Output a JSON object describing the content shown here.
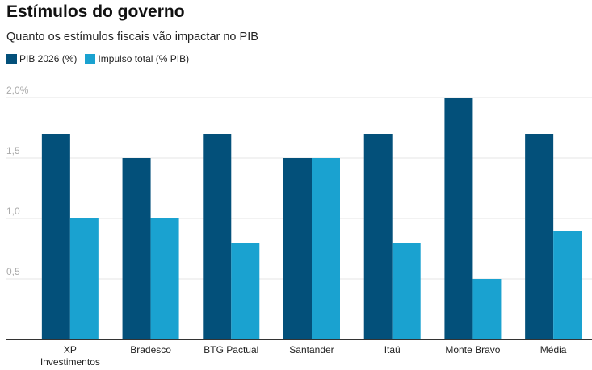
{
  "title": "Estímulos do governo",
  "subtitle": "Quanto os estímulos fiscais vão impactar no PIB",
  "chart_data": {
    "type": "bar",
    "title": "Estímulos do governo",
    "subtitle": "Quanto os estímulos fiscais vão impactar no PIB",
    "categories": [
      "XP Investimentos",
      "Bradesco",
      "BTG Pactual",
      "Santander",
      "Itaú",
      "Monte Bravo",
      "Média"
    ],
    "category_lines": [
      [
        "XP",
        "Investimentos"
      ],
      [
        "Bradesco"
      ],
      [
        "BTG Pactual"
      ],
      [
        "Santander"
      ],
      [
        "Itaú"
      ],
      [
        "Monte Bravo"
      ],
      [
        "Média"
      ]
    ],
    "series": [
      {
        "name": "PIB 2026 (%)",
        "color": "#03507a",
        "values": [
          1.7,
          1.5,
          1.7,
          1.5,
          1.7,
          2.0,
          1.7
        ]
      },
      {
        "name": "Impulso total (% PIB)",
        "color": "#1aa2d0",
        "values": [
          1.0,
          1.0,
          0.8,
          1.5,
          0.8,
          0.5,
          0.9
        ]
      }
    ],
    "yticks": [
      {
        "v": 0.5,
        "label": "0,5"
      },
      {
        "v": 1.0,
        "label": "1,0"
      },
      {
        "v": 1.5,
        "label": "1,5"
      },
      {
        "v": 2.0,
        "label": "2,0%"
      }
    ],
    "ylim": [
      0,
      2.0
    ],
    "grid": true,
    "legend": "top-left"
  }
}
